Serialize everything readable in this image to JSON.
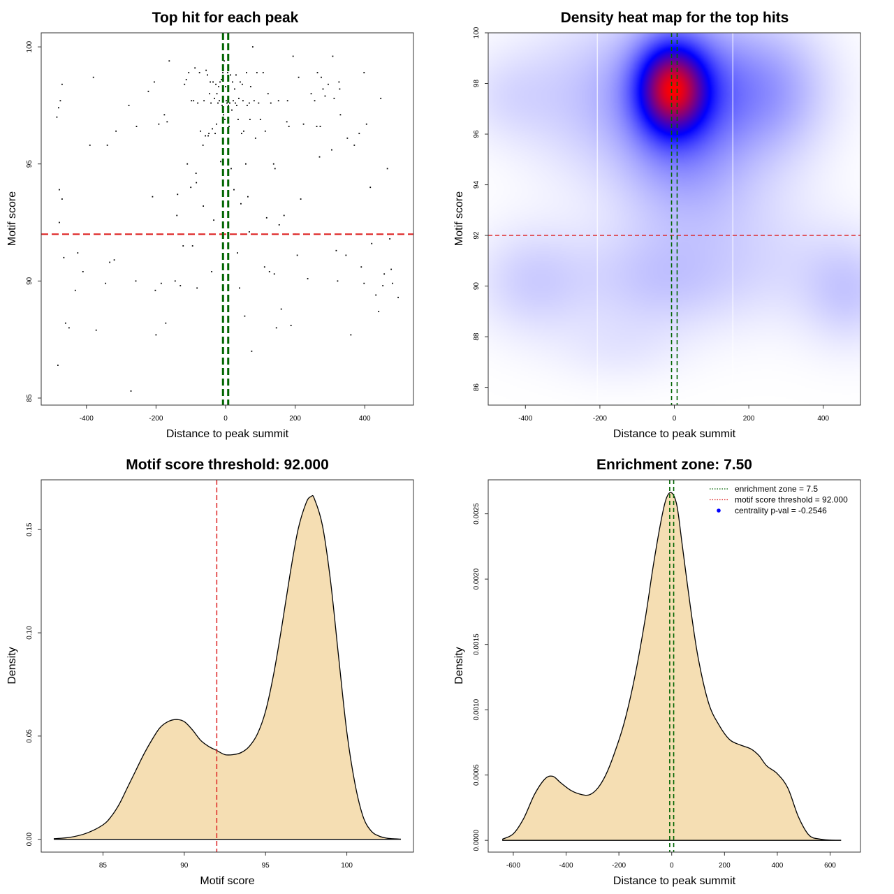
{
  "chart_data": [
    {
      "type": "scatter",
      "title": "Top hit for each peak",
      "xlabel": "Distance to peak summit",
      "ylabel": "Motif score",
      "xlim": [
        -530,
        540
      ],
      "ylim": [
        84.7,
        100.6
      ],
      "xticks": [
        -400,
        -200,
        0,
        200,
        400
      ],
      "xtick_labels": [
        "-400",
        "-200",
        "0",
        "200",
        "400"
      ],
      "yticks": [
        85,
        90,
        95,
        100
      ],
      "ytick_labels": [
        "85",
        "90",
        "95",
        "100"
      ],
      "threshold_y": 92,
      "zone_x": [
        -7.5,
        7.5
      ],
      "colors": {
        "points": "#000000",
        "threshold": "#dd2222",
        "zone": "#006400"
      },
      "points": [
        [
          -485,
          97
        ],
        [
          -480,
          97.4
        ],
        [
          -475,
          97.7
        ],
        [
          -470,
          98.4
        ],
        [
          -478,
          93.9
        ],
        [
          -470,
          93.5
        ],
        [
          -465,
          91
        ],
        [
          -478,
          92.5
        ],
        [
          -460,
          88.2
        ],
        [
          -450,
          88
        ],
        [
          -482,
          86.4
        ],
        [
          -432,
          89.6
        ],
        [
          -425,
          91.2
        ],
        [
          -410,
          90.4
        ],
        [
          -390,
          95.8
        ],
        [
          -380,
          98.7
        ],
        [
          -372,
          87.9
        ],
        [
          -345,
          89.9
        ],
        [
          -340,
          95.8
        ],
        [
          -333,
          90.8
        ],
        [
          -320,
          90.9
        ],
        [
          -315,
          96.4
        ],
        [
          -278,
          97.5
        ],
        [
          -272,
          85.3
        ],
        [
          -258,
          90
        ],
        [
          -256,
          96.6
        ],
        [
          -222,
          98.1
        ],
        [
          -210,
          93.6
        ],
        [
          -205,
          98.5
        ],
        [
          -202,
          89.6
        ],
        [
          -200,
          87.7
        ],
        [
          -192,
          96.7
        ],
        [
          -185,
          89.9
        ],
        [
          -176,
          97.1
        ],
        [
          -172,
          88.2
        ],
        [
          -168,
          96.8
        ],
        [
          -162,
          99.4
        ],
        [
          -145,
          90
        ],
        [
          -138,
          93.7
        ],
        [
          -130,
          89.8
        ],
        [
          -122,
          91.5
        ],
        [
          -118,
          98.4
        ],
        [
          -113,
          98.6
        ],
        [
          -110,
          95
        ],
        [
          -106,
          98.9
        ],
        [
          -100,
          94
        ],
        [
          -98,
          97.7
        ],
        [
          -95,
          91.5
        ],
        [
          -92,
          97.7
        ],
        [
          -88,
          99.1
        ],
        [
          -85,
          94.6
        ],
        [
          -84,
          94.2
        ],
        [
          -82,
          89.7
        ],
        [
          -80,
          97.6
        ],
        [
          -75,
          98.9
        ],
        [
          -72,
          96.4
        ],
        [
          -65,
          95.8
        ],
        [
          -62,
          97.7
        ],
        [
          -58,
          96.2
        ],
        [
          -56,
          99
        ],
        [
          -52,
          98.8
        ],
        [
          -50,
          96.2
        ],
        [
          -48,
          96.3
        ],
        [
          -46,
          98
        ],
        [
          -44,
          98.5
        ],
        [
          -42,
          97.6
        ],
        [
          -40,
          90.4
        ],
        [
          -38,
          96.5
        ],
        [
          -36,
          98.5
        ],
        [
          -34,
          92.6
        ],
        [
          -32,
          97.8
        ],
        [
          -30,
          96.3
        ],
        [
          -28,
          98.4
        ],
        [
          -26,
          96.7
        ],
        [
          -25,
          98
        ],
        [
          -22,
          97.6
        ],
        [
          -20,
          98.3
        ],
        [
          -18,
          97.7
        ],
        [
          -16,
          98.5
        ],
        [
          -14,
          95.1
        ],
        [
          -12,
          98.6
        ],
        [
          -10,
          97.5
        ],
        [
          -8,
          98.9
        ],
        [
          -6,
          97.1
        ],
        [
          -4,
          99.4
        ],
        [
          -2,
          96.9
        ],
        [
          0,
          98.3
        ],
        [
          2,
          97.7
        ],
        [
          4,
          97.6
        ],
        [
          6,
          98.9
        ],
        [
          8,
          97.5
        ],
        [
          10,
          96.6
        ],
        [
          12,
          97.6
        ],
        [
          14,
          98.8
        ],
        [
          16,
          94.8
        ],
        [
          18,
          97.3
        ],
        [
          20,
          98.5
        ],
        [
          22,
          97.7
        ],
        [
          24,
          93.9
        ],
        [
          26,
          98.2
        ],
        [
          28,
          97.6
        ],
        [
          30,
          98.8
        ],
        [
          32,
          97.5
        ],
        [
          34,
          91.2
        ],
        [
          36,
          96.9
        ],
        [
          38,
          97.8
        ],
        [
          40,
          89.7
        ],
        [
          42,
          98.5
        ],
        [
          44,
          93.3
        ],
        [
          46,
          96.3
        ],
        [
          48,
          98.4
        ],
        [
          50,
          97.7
        ],
        [
          52,
          96.4
        ],
        [
          55,
          88.5
        ],
        [
          58,
          95
        ],
        [
          60,
          98.9
        ],
        [
          62,
          97.5
        ],
        [
          64,
          93.6
        ],
        [
          68,
          97.6
        ],
        [
          70,
          96.9
        ],
        [
          72,
          98.3
        ],
        [
          75,
          87
        ],
        [
          78,
          100
        ],
        [
          82,
          97.7
        ],
        [
          86,
          96.1
        ],
        [
          90,
          98.9
        ],
        [
          95,
          97.6
        ],
        [
          100,
          96.9
        ],
        [
          108,
          98.9
        ],
        [
          112,
          90.6
        ],
        [
          114,
          96.4
        ],
        [
          118,
          92.7
        ],
        [
          122,
          98
        ],
        [
          126,
          90.4
        ],
        [
          130,
          97.6
        ],
        [
          138,
          95
        ],
        [
          140,
          90.3
        ],
        [
          142,
          94.8
        ],
        [
          146,
          88
        ],
        [
          152,
          97.7
        ],
        [
          154,
          92.4
        ],
        [
          160,
          88.8
        ],
        [
          168,
          92.8
        ],
        [
          176,
          96.8
        ],
        [
          178,
          97.7
        ],
        [
          182,
          96.6
        ],
        [
          188,
          88.1
        ],
        [
          194,
          99.6
        ],
        [
          200,
          92
        ],
        [
          206,
          91.1
        ],
        [
          210,
          98.7
        ],
        [
          216,
          93.5
        ],
        [
          224,
          96.7
        ],
        [
          236,
          90.1
        ],
        [
          246,
          98
        ],
        [
          256,
          97.7
        ],
        [
          262,
          96.6
        ],
        [
          264,
          98.9
        ],
        [
          270,
          95.3
        ],
        [
          272,
          96.6
        ],
        [
          275,
          98.7
        ],
        [
          280,
          98.2
        ],
        [
          286,
          97.9
        ],
        [
          295,
          98.4
        ],
        [
          305,
          95.6
        ],
        [
          308,
          99.6
        ],
        [
          312,
          97.8
        ],
        [
          318,
          91.3
        ],
        [
          322,
          90
        ],
        [
          326,
          98.5
        ],
        [
          328,
          98.2
        ],
        [
          330,
          97.1
        ],
        [
          346,
          91.1
        ],
        [
          350,
          96.1
        ],
        [
          360,
          87.7
        ],
        [
          370,
          95.8
        ],
        [
          384,
          96.3
        ],
        [
          390,
          90.6
        ],
        [
          398,
          98.9
        ],
        [
          405,
          96.7
        ],
        [
          416,
          94
        ],
        [
          420,
          91.6
        ],
        [
          432,
          89.4
        ],
        [
          440,
          88.7
        ],
        [
          446,
          97.8
        ],
        [
          452,
          89.8
        ],
        [
          456,
          90.3
        ],
        [
          465,
          94.8
        ],
        [
          472,
          91.8
        ],
        [
          476,
          90.5
        ],
        [
          480,
          89.9
        ],
        [
          496,
          89.3
        ],
        [
          398,
          89.9
        ],
        [
          -64,
          93.2
        ],
        [
          68,
          92.1
        ],
        [
          -140,
          92.8
        ]
      ]
    },
    {
      "type": "heatmap",
      "title": "Density heat map for the top hits",
      "xlabel": "Distance to peak summit",
      "ylabel": "Motif score",
      "xlim": [
        -500,
        500
      ],
      "ylim": [
        85.3,
        100
      ],
      "xticks": [
        -400,
        -200,
        0,
        200,
        400
      ],
      "xtick_labels": [
        "-400",
        "-200",
        "0",
        "200",
        "400"
      ],
      "yticks": [
        86,
        88,
        90,
        92,
        94,
        96,
        98,
        100
      ],
      "ytick_labels": [
        "86",
        "88",
        "90",
        "92",
        "94",
        "96",
        "98",
        "100"
      ],
      "threshold_y": 92,
      "zone_x": [
        -7.5,
        7.5
      ],
      "white_lines_x": [
        -207,
        157
      ],
      "colors": {
        "low": "#ffffff",
        "mid": "#0000ff",
        "high": "#ff0000",
        "threshold": "#dd2222",
        "zone": "#006400"
      },
      "density_peaks": [
        {
          "x": -5,
          "y": 97.8,
          "sx": 60,
          "sy": 1.15,
          "w": 1.0
        },
        {
          "x": 10,
          "y": 97.5,
          "sx": 110,
          "sy": 2.1,
          "w": 0.55
        },
        {
          "x": 240,
          "y": 97.7,
          "sx": 120,
          "sy": 1.9,
          "w": 0.32
        },
        {
          "x": -230,
          "y": 97.5,
          "sx": 130,
          "sy": 2.2,
          "w": 0.16
        },
        {
          "x": -40,
          "y": 90.3,
          "sx": 150,
          "sy": 1.5,
          "w": 0.17
        },
        {
          "x": -380,
          "y": 90.2,
          "sx": 110,
          "sy": 1.5,
          "w": 0.15
        },
        {
          "x": 470,
          "y": 89.8,
          "sx": 90,
          "sy": 1.5,
          "w": 0.16
        },
        {
          "x": 250,
          "y": 91.0,
          "sx": 150,
          "sy": 1.8,
          "w": 0.09
        },
        {
          "x": 50,
          "y": 93.8,
          "sx": 150,
          "sy": 1.6,
          "w": 0.14
        },
        {
          "x": -450,
          "y": 97.5,
          "sx": 90,
          "sy": 1.3,
          "w": 0.09
        },
        {
          "x": -150,
          "y": 87.5,
          "sx": 120,
          "sy": 1.0,
          "w": 0.06
        }
      ]
    },
    {
      "type": "area",
      "title": "Motif score threshold: 92.000",
      "xlabel": "Motif score",
      "ylabel": "Density",
      "xlim": [
        81.2,
        104.1
      ],
      "ylim": [
        -0.0062,
        0.1741
      ],
      "xticks": [
        85,
        90,
        95,
        100
      ],
      "xtick_labels": [
        "85",
        "90",
        "95",
        "100"
      ],
      "yticks": [
        0,
        0.05,
        0.1,
        0.15
      ],
      "ytick_labels": [
        "0.00",
        "0.05",
        "0.10",
        "0.15"
      ],
      "threshold_x": 92,
      "colors": {
        "fill": "#f5deb3",
        "line": "#000000",
        "threshold": "#dd2222"
      },
      "x": [
        82,
        83,
        84,
        85,
        85.5,
        86,
        86.5,
        87,
        87.5,
        88,
        88.5,
        89,
        89.5,
        90,
        90.5,
        91,
        91.5,
        92,
        92.5,
        93,
        93.5,
        94,
        94.5,
        95,
        95.5,
        96,
        96.5,
        97,
        97.5,
        97.8,
        98,
        98.5,
        99,
        99.5,
        100,
        100.5,
        101,
        101.5,
        102,
        102.5,
        103,
        103.3
      ],
      "y": [
        0.0003,
        0.001,
        0.003,
        0.007,
        0.011,
        0.017,
        0.025,
        0.033,
        0.041,
        0.048,
        0.054,
        0.057,
        0.058,
        0.057,
        0.053,
        0.048,
        0.045,
        0.043,
        0.041,
        0.041,
        0.042,
        0.045,
        0.051,
        0.062,
        0.08,
        0.103,
        0.128,
        0.15,
        0.163,
        0.166,
        0.165,
        0.152,
        0.125,
        0.088,
        0.052,
        0.027,
        0.011,
        0.004,
        0.0015,
        0.0005,
        0.0002,
        0.0001
      ]
    },
    {
      "type": "area",
      "title": "Enrichment zone: 7.50",
      "xlabel": "Distance to peak summit",
      "ylabel": "Density",
      "xlim": [
        -695,
        715
      ],
      "ylim": [
        -9e-05,
        0.00276
      ],
      "xticks": [
        -600,
        -400,
        -200,
        0,
        200,
        400,
        600
      ],
      "xtick_labels": [
        "-600",
        "-400",
        "-200",
        "0",
        "200",
        "400",
        "600"
      ],
      "yticks": [
        0,
        0.0005,
        0.001,
        0.0015,
        0.002,
        0.0025
      ],
      "ytick_labels": [
        "0.0000",
        "0.0005",
        "0.0010",
        "0.0015",
        "0.0020",
        "0.0025"
      ],
      "zone_x": [
        -7.5,
        7.5
      ],
      "colors": {
        "fill": "#f5deb3",
        "line": "#000000",
        "zone": "#006400",
        "threshold": "#dd2222",
        "point": "#0000ff"
      },
      "x": [
        -640,
        -600,
        -560,
        -520,
        -480,
        -450,
        -420,
        -380,
        -340,
        -310,
        -280,
        -250,
        -220,
        -180,
        -140,
        -100,
        -70,
        -40,
        -20,
        0,
        20,
        40,
        70,
        100,
        140,
        180,
        220,
        260,
        300,
        330,
        360,
        400,
        440,
        480,
        520,
        560,
        600,
        640
      ],
      "y": [
        1e-05,
        5e-05,
        0.00017,
        0.00035,
        0.00047,
        0.00049,
        0.00044,
        0.00038,
        0.00035,
        0.00035,
        0.0004,
        0.0005,
        0.00065,
        0.0009,
        0.00125,
        0.0017,
        0.0021,
        0.00245,
        0.00262,
        0.00266,
        0.00256,
        0.00226,
        0.0018,
        0.0014,
        0.00105,
        0.00088,
        0.00077,
        0.00073,
        0.0007,
        0.00065,
        0.00057,
        0.00051,
        0.0004,
        0.00018,
        4e-05,
        1e-05,
        2e-06,
        5e-07
      ],
      "legend": {
        "position": "top-right",
        "entries": [
          {
            "label": "enrichment zone = 7.5",
            "color": "#006400",
            "kind": "dotted-line"
          },
          {
            "label": "motif score threshold = 92.000",
            "color": "#dd2222",
            "kind": "dotted-line"
          },
          {
            "label": "centrality p-val = -0.2546",
            "color": "#0000ff",
            "kind": "point"
          }
        ]
      }
    }
  ]
}
